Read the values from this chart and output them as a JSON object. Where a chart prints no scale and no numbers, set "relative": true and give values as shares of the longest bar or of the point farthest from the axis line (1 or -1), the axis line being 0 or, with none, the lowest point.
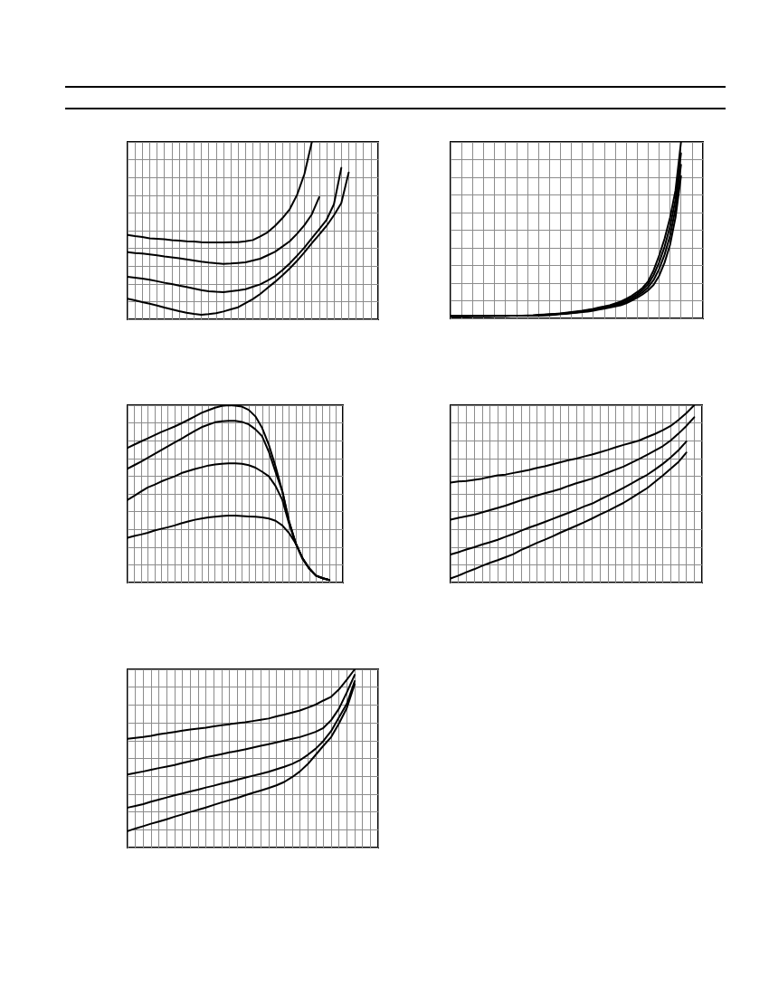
{
  "chart_data": [
    {
      "type": "line",
      "relative": true,
      "grid": true,
      "categories": [
        null,
        null,
        null,
        null,
        null,
        null,
        null,
        null,
        null,
        null,
        null,
        null,
        null,
        null,
        null,
        null,
        null,
        null,
        null,
        null,
        null,
        null,
        null,
        null,
        null,
        null,
        null,
        null,
        null,
        null,
        null,
        null,
        null,
        null,
        null
      ],
      "series": [
        {
          "color": "#000000",
          "values": [
            0.476,
            0.469,
            0.464,
            0.457,
            0.454,
            0.451,
            0.447,
            0.444,
            0.44,
            0.439,
            0.435,
            0.434,
            0.434,
            0.434,
            0.435,
            0.435,
            0.44,
            0.447,
            0.468,
            0.491,
            0.527,
            0.57,
            0.621,
            0.702,
            0.82,
            1,
            null,
            null,
            null,
            null,
            null,
            null,
            null,
            null,
            null
          ]
        },
        {
          "color": "#000000",
          "values": [
            0.379,
            0.374,
            0.371,
            0.366,
            0.361,
            0.355,
            0.35,
            0.344,
            0.338,
            0.332,
            0.325,
            0.32,
            0.316,
            0.313,
            0.315,
            0.318,
            0.321,
            0.332,
            0.342,
            0.361,
            0.381,
            0.41,
            0.44,
            0.483,
            0.531,
            0.592,
            0.689,
            null,
            null,
            null,
            null,
            null,
            null,
            null,
            null
          ]
        },
        {
          "color": "#000000",
          "values": [
            0.24,
            0.235,
            0.23,
            0.223,
            0.215,
            0.206,
            0.199,
            0.19,
            0.182,
            0.173,
            0.165,
            0.158,
            0.155,
            0.153,
            0.158,
            0.163,
            0.17,
            0.184,
            0.197,
            0.219,
            0.243,
            0.277,
            0.315,
            0.359,
            0.405,
            0.457,
            0.508,
            0.561,
            0.649,
            0.854,
            null,
            null,
            null,
            null,
            null
          ]
        },
        {
          "color": "#000000",
          "values": [
            0.116,
            0.107,
            0.097,
            0.088,
            0.078,
            0.066,
            0.056,
            0.046,
            0.037,
            0.031,
            0.026,
            0.029,
            0.034,
            0.044,
            0.056,
            0.068,
            0.091,
            0.114,
            0.143,
            0.177,
            0.211,
            0.247,
            0.287,
            0.33,
            0.378,
            0.429,
            0.478,
            0.527,
            0.587,
            0.656,
            0.828,
            null,
            null,
            null,
            null
          ]
        }
      ]
    },
    {
      "type": "line",
      "relative": true,
      "grid": true,
      "categories": [
        null,
        null,
        null,
        null,
        null,
        null,
        null,
        null,
        null,
        null,
        null,
        null,
        null,
        null,
        null,
        null,
        null,
        null,
        null,
        null,
        null,
        null,
        null,
        null,
        null,
        null,
        null,
        null,
        null,
        null,
        null,
        null,
        null,
        null,
        null,
        null,
        null,
        null,
        null,
        null,
        null,
        null,
        null,
        null,
        null,
        null,
        null
      ],
      "series": [
        {
          "color": "#000000",
          "values": [
            0.014,
            0.014,
            0.014,
            0.014,
            0.015,
            0.015,
            0.015,
            0.015,
            0.015,
            0.015,
            0.015,
            0.015,
            0.016,
            0.016,
            0.017,
            0.017,
            0.02,
            0.022,
            0.024,
            0.026,
            0.028,
            0.032,
            0.036,
            0.04,
            0.044,
            0.049,
            0.054,
            0.062,
            0.068,
            0.075,
            0.085,
            0.095,
            0.111,
            0.128,
            0.149,
            0.173,
            0.21,
            0.272,
            0.354,
            0.451,
            0.571,
            0.726,
            1,
            null,
            null,
            null,
            null
          ]
        },
        {
          "color": "#000000",
          "values": [
            0.013,
            0.013,
            0.013,
            0.013,
            0.014,
            0.014,
            0.014,
            0.014,
            0.015,
            0.015,
            0.015,
            0.015,
            0.016,
            0.016,
            0.016,
            0.017,
            0.019,
            0.02,
            0.022,
            0.024,
            0.027,
            0.03,
            0.034,
            0.037,
            0.041,
            0.046,
            0.051,
            0.058,
            0.064,
            0.07,
            0.079,
            0.088,
            0.103,
            0.119,
            0.138,
            0.161,
            0.193,
            0.245,
            0.316,
            0.406,
            0.52,
            0.675,
            0.936,
            null,
            null,
            null,
            null
          ]
        },
        {
          "color": "#000000",
          "values": [
            0.013,
            0.013,
            0.013,
            0.013,
            0.014,
            0.014,
            0.014,
            0.014,
            0.014,
            0.014,
            0.014,
            0.015,
            0.015,
            0.015,
            0.016,
            0.016,
            0.017,
            0.019,
            0.02,
            0.023,
            0.025,
            0.028,
            0.031,
            0.035,
            0.039,
            0.042,
            0.047,
            0.054,
            0.059,
            0.066,
            0.074,
            0.081,
            0.094,
            0.11,
            0.128,
            0.148,
            0.176,
            0.217,
            0.279,
            0.361,
            0.468,
            0.624,
            0.871,
            null,
            null,
            null,
            null
          ]
        },
        {
          "color": "#000000",
          "values": [
            0.012,
            0.012,
            0.012,
            0.012,
            0.013,
            0.013,
            0.013,
            0.013,
            0.014,
            0.014,
            0.014,
            0.015,
            0.015,
            0.015,
            0.015,
            0.016,
            0.016,
            0.017,
            0.018,
            0.021,
            0.024,
            0.026,
            0.029,
            0.032,
            0.036,
            0.039,
            0.044,
            0.05,
            0.055,
            0.061,
            0.068,
            0.074,
            0.086,
            0.101,
            0.117,
            0.136,
            0.159,
            0.19,
            0.241,
            0.316,
            0.417,
            0.573,
            0.807,
            null,
            null,
            null,
            null
          ]
        }
      ]
    },
    {
      "type": "line",
      "relative": true,
      "grid": true,
      "categories": [
        null,
        null,
        null,
        null,
        null,
        null,
        null,
        null,
        null,
        null,
        null,
        null,
        null,
        null,
        null,
        null,
        null,
        null,
        null,
        null,
        null,
        null,
        null,
        null,
        null,
        null,
        null,
        null,
        null,
        null,
        null,
        null,
        null
      ],
      "series": [
        {
          "color": "#000000",
          "values": [
            0.76,
            0.778,
            0.796,
            0.813,
            0.831,
            0.849,
            0.864,
            0.88,
            0.898,
            0.917,
            0.937,
            0.957,
            0.972,
            0.986,
            0.996,
            1,
            0.998,
            0.992,
            0.974,
            0.937,
            0.872,
            0.776,
            0.654,
            0.515,
            0.344,
            0.22,
            0.136,
            0.079,
            0.039,
            0.024,
            0.014,
            null,
            null
          ]
        },
        {
          "color": "#000000",
          "values": [
            0.642,
            0.662,
            0.682,
            0.703,
            0.725,
            0.747,
            0.768,
            0.79,
            0.811,
            0.833,
            0.855,
            0.876,
            0.89,
            0.904,
            0.91,
            0.912,
            0.912,
            0.906,
            0.892,
            0.864,
            0.825,
            0.737,
            0.623,
            0.515,
            0.344,
            0.22,
            0.136,
            0.079,
            0.039,
            0.024,
            0.014,
            null,
            null
          ]
        },
        {
          "color": "#000000",
          "values": [
            0.466,
            0.489,
            0.513,
            0.536,
            0.552,
            0.57,
            0.585,
            0.599,
            0.617,
            0.629,
            0.64,
            0.65,
            0.66,
            0.666,
            0.67,
            0.672,
            0.672,
            0.67,
            0.662,
            0.648,
            0.625,
            0.599,
            0.544,
            0.466,
            0.332,
            0.22,
            0.136,
            0.079,
            0.039,
            0.024,
            0.014,
            null,
            null
          ]
        },
        {
          "color": "#000000",
          "values": [
            0.253,
            0.263,
            0.271,
            0.281,
            0.293,
            0.303,
            0.312,
            0.322,
            0.334,
            0.344,
            0.354,
            0.361,
            0.367,
            0.371,
            0.375,
            0.377,
            0.377,
            0.375,
            0.373,
            0.371,
            0.367,
            0.361,
            0.348,
            0.322,
            0.279,
            0.22,
            0.136,
            0.079,
            0.039,
            0.024,
            0.014,
            null,
            null
          ]
        }
      ]
    },
    {
      "type": "line",
      "relative": true,
      "grid": true,
      "categories": [
        null,
        null,
        null,
        null,
        null,
        null,
        null,
        null,
        null,
        null,
        null,
        null,
        null,
        null,
        null,
        null,
        null,
        null,
        null,
        null,
        null,
        null,
        null,
        null,
        null,
        null,
        null,
        null,
        null,
        null,
        null,
        null,
        null
      ],
      "series": [
        {
          "color": "#000000",
          "values": [
            0.564,
            0.57,
            0.573,
            0.579,
            0.586,
            0.596,
            0.605,
            0.609,
            0.618,
            0.626,
            0.635,
            0.647,
            0.656,
            0.667,
            0.679,
            0.69,
            0.699,
            0.711,
            0.722,
            0.735,
            0.748,
            0.763,
            0.776,
            0.788,
            0.801,
            0.82,
            0.838,
            0.859,
            0.883,
            0.917,
            0.955,
            1,
            null
          ]
        },
        {
          "color": "#000000",
          "values": [
            0.355,
            0.365,
            0.374,
            0.383,
            0.395,
            0.408,
            0.421,
            0.434,
            0.449,
            0.464,
            0.477,
            0.491,
            0.504,
            0.515,
            0.528,
            0.545,
            0.56,
            0.573,
            0.586,
            0.603,
            0.62,
            0.637,
            0.654,
            0.675,
            0.697,
            0.72,
            0.744,
            0.769,
            0.801,
            0.84,
            0.883,
            0.932,
            null
          ]
        },
        {
          "color": "#000000",
          "values": [
            0.158,
            0.171,
            0.186,
            0.199,
            0.214,
            0.227,
            0.241,
            0.258,
            0.274,
            0.293,
            0.31,
            0.325,
            0.342,
            0.359,
            0.376,
            0.393,
            0.41,
            0.429,
            0.445,
            0.468,
            0.489,
            0.511,
            0.534,
            0.558,
            0.583,
            0.607,
            0.637,
            0.669,
            0.705,
            0.746,
            0.795,
            null,
            null
          ]
        },
        {
          "color": "#000000",
          "values": [
            0.023,
            0.039,
            0.058,
            0.075,
            0.094,
            0.111,
            0.126,
            0.143,
            0.16,
            0.184,
            0.203,
            0.224,
            0.242,
            0.261,
            0.282,
            0.301,
            0.32,
            0.34,
            0.361,
            0.383,
            0.404,
            0.427,
            0.449,
            0.476,
            0.504,
            0.532,
            0.568,
            0.603,
            0.641,
            0.68,
            0.733,
            null,
            null
          ]
        }
      ]
    },
    {
      "type": "line",
      "relative": true,
      "grid": true,
      "categories": [
        null,
        null,
        null,
        null,
        null,
        null,
        null,
        null,
        null,
        null,
        null,
        null,
        null,
        null,
        null,
        null,
        null,
        null,
        null,
        null,
        null,
        null,
        null,
        null,
        null,
        null,
        null,
        null,
        null,
        null,
        null,
        null,
        null
      ],
      "series": [
        {
          "color": "#000000",
          "values": [
            0.61,
            0.615,
            0.62,
            0.627,
            0.636,
            0.642,
            0.649,
            0.656,
            0.663,
            0.668,
            0.673,
            0.68,
            0.686,
            0.692,
            0.698,
            0.703,
            0.71,
            0.717,
            0.724,
            0.736,
            0.746,
            0.758,
            0.769,
            0.785,
            0.802,
            0.825,
            0.846,
            0.888,
            0.942,
            1,
            null,
            null,
            null
          ]
        },
        {
          "color": "#000000",
          "values": [
            0.41,
            0.419,
            0.427,
            0.437,
            0.446,
            0.454,
            0.463,
            0.475,
            0.485,
            0.495,
            0.507,
            0.515,
            0.524,
            0.534,
            0.542,
            0.551,
            0.561,
            0.571,
            0.58,
            0.59,
            0.6,
            0.61,
            0.62,
            0.634,
            0.649,
            0.671,
            0.715,
            0.78,
            0.871,
            0.969,
            null,
            null,
            null
          ]
        },
        {
          "color": "#000000",
          "values": [
            0.224,
            0.234,
            0.244,
            0.258,
            0.269,
            0.281,
            0.293,
            0.303,
            0.315,
            0.325,
            0.337,
            0.347,
            0.359,
            0.369,
            0.381,
            0.392,
            0.403,
            0.414,
            0.425,
            0.439,
            0.453,
            0.469,
            0.49,
            0.52,
            0.554,
            0.598,
            0.654,
            0.731,
            0.807,
            0.934,
            null,
            null,
            null
          ]
        },
        {
          "color": "#000000",
          "values": [
            0.092,
            0.107,
            0.12,
            0.134,
            0.146,
            0.159,
            0.173,
            0.186,
            0.2,
            0.212,
            0.225,
            0.239,
            0.253,
            0.266,
            0.278,
            0.293,
            0.307,
            0.32,
            0.334,
            0.349,
            0.368,
            0.395,
            0.427,
            0.468,
            0.519,
            0.571,
            0.62,
            0.697,
            0.783,
            0.917,
            null,
            null,
            null
          ]
        }
      ]
    }
  ]
}
